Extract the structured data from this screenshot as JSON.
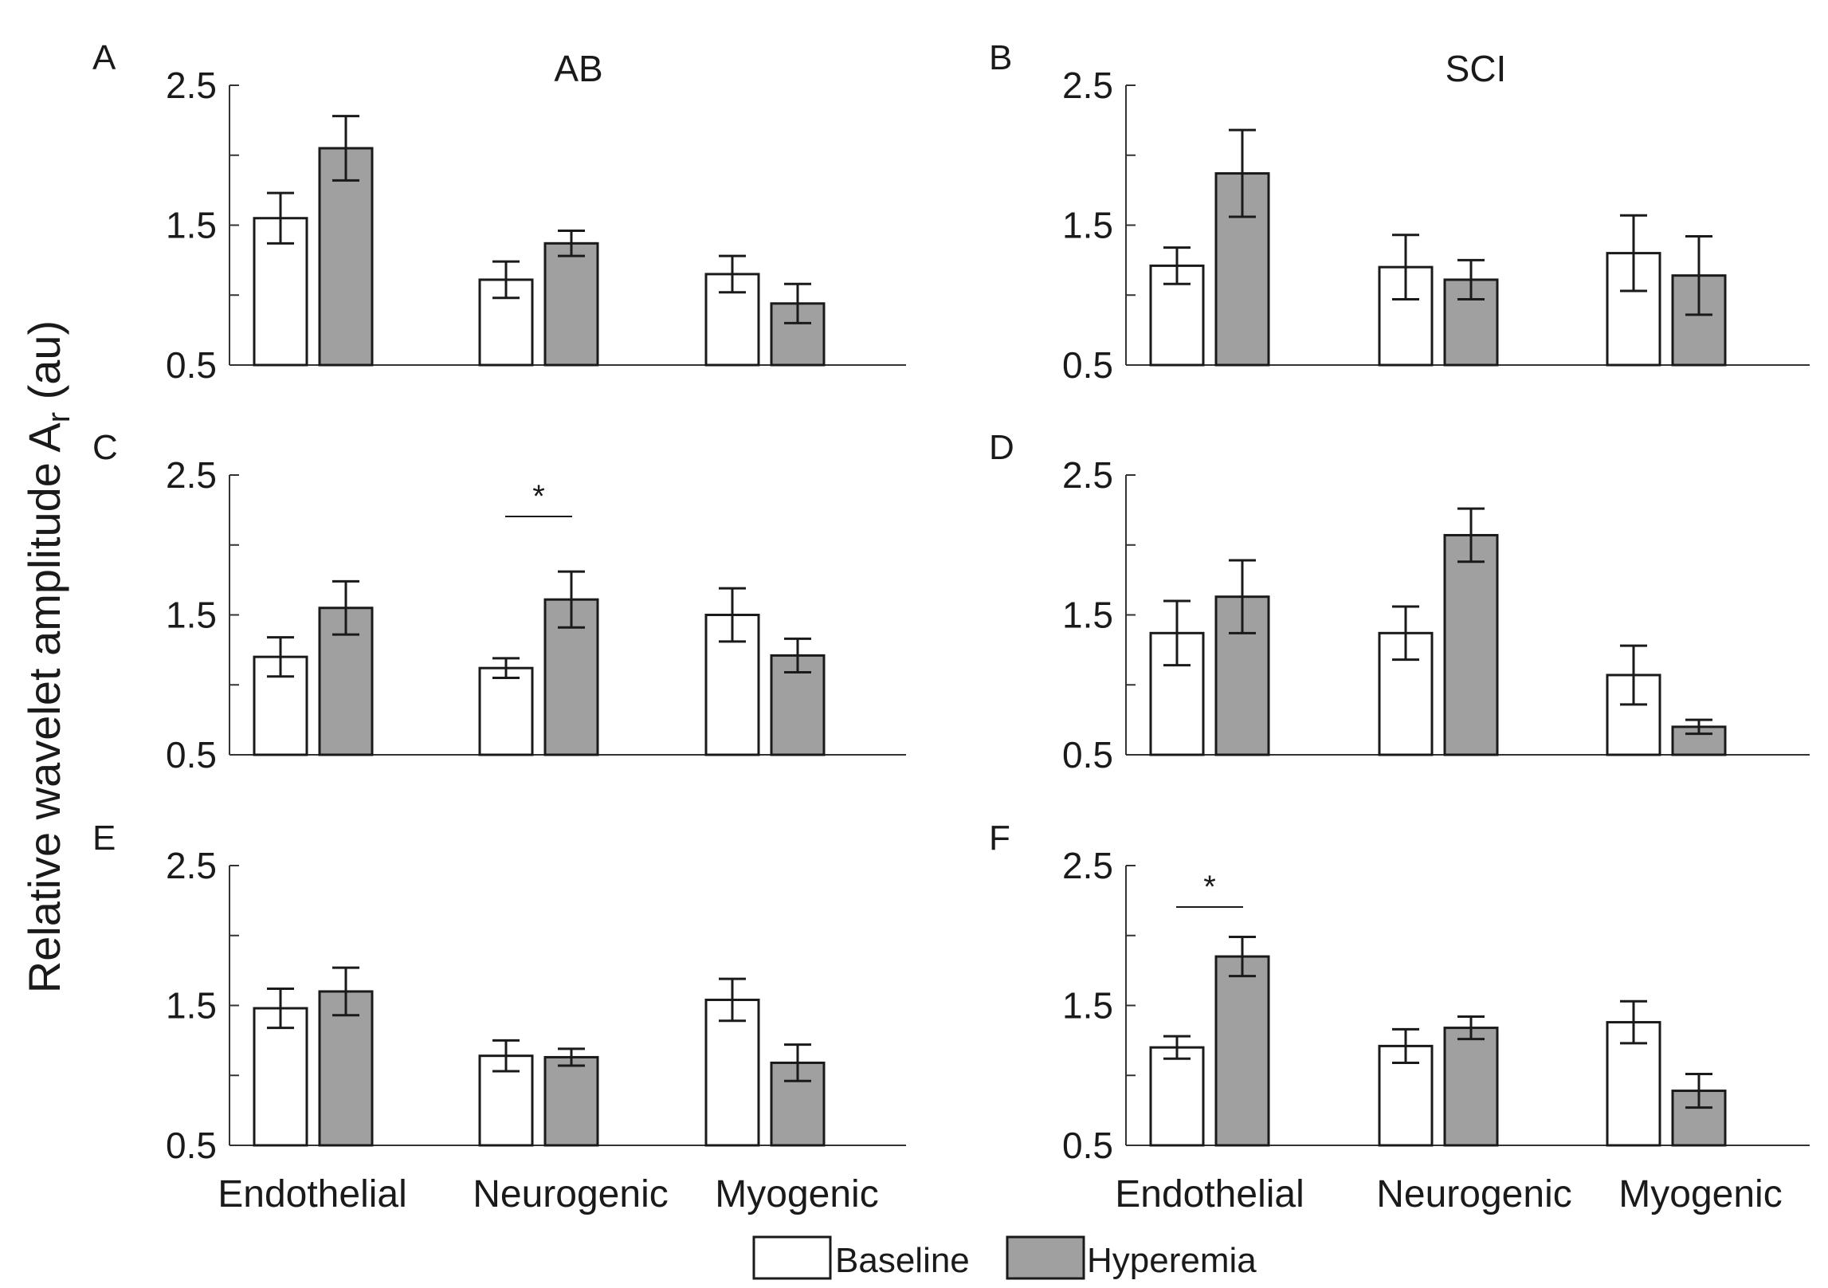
{
  "chart_data": {
    "type": "bar",
    "ylabel": "Relative wavelet amplitude A",
    "ylabel_subscript": "r",
    "ylabel_suffix": " (au)",
    "ylim": [
      0.5,
      2.5
    ],
    "yticks": [
      0.5,
      1.5,
      2.5
    ],
    "ytick_labels": [
      "0.5",
      "1.5",
      "2.5"
    ],
    "categories": [
      "Endothelial",
      "Neurogenic",
      "Myogenic"
    ],
    "column_titles": [
      "AB",
      "SCI"
    ],
    "legend": {
      "position": "bottom",
      "items": [
        {
          "label": "Baseline",
          "color": "#ffffff"
        },
        {
          "label": "Hyperemia",
          "color": "#a0a0a0"
        }
      ]
    },
    "significance_mark": "*",
    "panels": [
      {
        "letter": "A",
        "series": [
          {
            "name": "Baseline",
            "values": [
              1.55,
              1.11,
              1.15
            ],
            "errors": [
              0.18,
              0.13,
              0.13
            ]
          },
          {
            "name": "Hyperemia",
            "values": [
              2.05,
              1.37,
              0.94
            ],
            "errors": [
              0.23,
              0.09,
              0.14
            ]
          }
        ],
        "significance": []
      },
      {
        "letter": "B",
        "series": [
          {
            "name": "Baseline",
            "values": [
              1.21,
              1.2,
              1.3
            ],
            "errors": [
              0.13,
              0.23,
              0.27
            ]
          },
          {
            "name": "Hyperemia",
            "values": [
              1.87,
              1.11,
              1.14
            ],
            "errors": [
              0.31,
              0.14,
              0.28
            ]
          }
        ],
        "significance": []
      },
      {
        "letter": "C",
        "series": [
          {
            "name": "Baseline",
            "values": [
              1.2,
              1.12,
              1.5
            ],
            "errors": [
              0.14,
              0.07,
              0.19
            ]
          },
          {
            "name": "Hyperemia",
            "values": [
              1.55,
              1.61,
              1.21
            ],
            "errors": [
              0.19,
              0.2,
              0.12
            ]
          }
        ],
        "significance": [
          1
        ]
      },
      {
        "letter": "D",
        "series": [
          {
            "name": "Baseline",
            "values": [
              1.37,
              1.37,
              1.07
            ],
            "errors": [
              0.23,
              0.19,
              0.21
            ]
          },
          {
            "name": "Hyperemia",
            "values": [
              1.63,
              2.07,
              0.7
            ],
            "errors": [
              0.26,
              0.19,
              0.05
            ]
          }
        ],
        "significance": []
      },
      {
        "letter": "E",
        "series": [
          {
            "name": "Baseline",
            "values": [
              1.48,
              1.14,
              1.54
            ],
            "errors": [
              0.14,
              0.11,
              0.15
            ]
          },
          {
            "name": "Hyperemia",
            "values": [
              1.6,
              1.13,
              1.09
            ],
            "errors": [
              0.17,
              0.06,
              0.13
            ]
          }
        ],
        "significance": []
      },
      {
        "letter": "F",
        "series": [
          {
            "name": "Baseline",
            "values": [
              1.2,
              1.21,
              1.38
            ],
            "errors": [
              0.08,
              0.12,
              0.15
            ]
          },
          {
            "name": "Hyperemia",
            "values": [
              1.85,
              1.34,
              0.89
            ],
            "errors": [
              0.14,
              0.08,
              0.12
            ]
          }
        ],
        "significance": [
          0
        ]
      }
    ]
  }
}
